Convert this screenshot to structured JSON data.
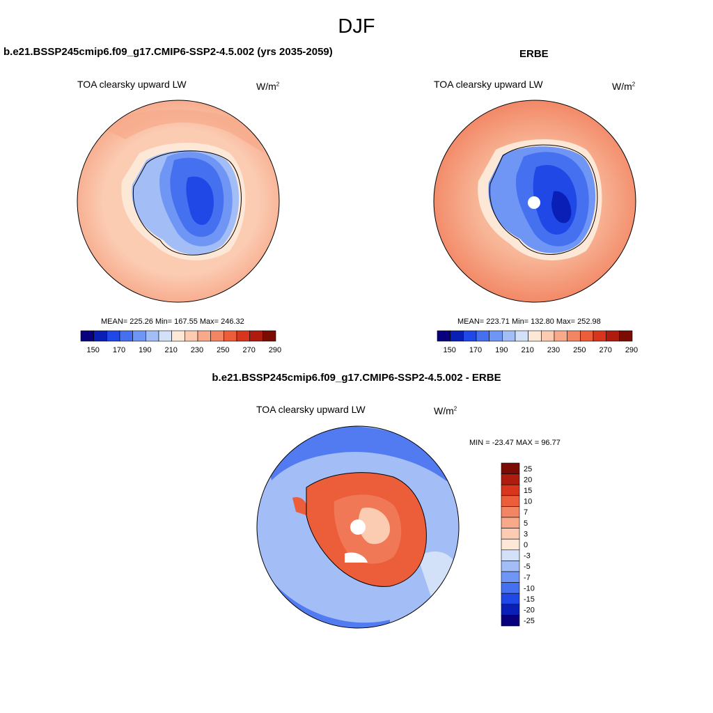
{
  "figure": {
    "season": "DJF",
    "panel_left_title": "b.e21.BSSP245cmip6.f09_g17.CMIP6-SSP2-4.5.002 (yrs 2035-2059)",
    "panel_right_title": "ERBE",
    "panel_diff_title": "b.e21.BSSP245cmip6.f09_g17.CMIP6-SSP2-4.5.002 - ERBE",
    "variable": "TOA clearsky upward LW",
    "units_base": "W/m",
    "units_exp": "2"
  },
  "chart_data": [
    {
      "type": "heatmap",
      "projection": "south-polar-stereographic",
      "title": "b.e21.BSSP245cmip6.f09_g17.CMIP6-SSP2-4.5.002 (yrs 2035-2059)",
      "variable": "TOA clearsky upward LW",
      "units": "W/m2",
      "stats": {
        "mean": 225.26,
        "min": 167.55,
        "max": 246.32
      },
      "stats_label": "MEAN= 225.26  Min= 167.55  Max= 246.32",
      "colorbar_ticks": [
        "150",
        "170",
        "190",
        "210",
        "230",
        "250",
        "270",
        "290"
      ],
      "colorbar_colors": [
        "#08007c",
        "#0a1fb5",
        "#1f48e6",
        "#4570f0",
        "#7096f5",
        "#a3bdf7",
        "#d2e0f8",
        "#fde7d6",
        "#fbcbb2",
        "#f7a98a",
        "#f28563",
        "#ec5d3a",
        "#d8361c",
        "#ae1c0e",
        "#7a0c04"
      ],
      "colorbar_position": "bottom"
    },
    {
      "type": "heatmap",
      "projection": "south-polar-stereographic",
      "title": "ERBE",
      "variable": "TOA clearsky upward LW",
      "units": "W/m2",
      "stats": {
        "mean": 223.71,
        "min": 132.8,
        "max": 252.98
      },
      "stats_label": "MEAN= 223.71  Min= 132.80  Max= 252.98",
      "colorbar_ticks": [
        "150",
        "170",
        "190",
        "210",
        "230",
        "250",
        "270",
        "290"
      ],
      "colorbar_colors": [
        "#08007c",
        "#0a1fb5",
        "#1f48e6",
        "#4570f0",
        "#7096f5",
        "#a3bdf7",
        "#d2e0f8",
        "#fde7d6",
        "#fbcbb2",
        "#f7a98a",
        "#f28563",
        "#ec5d3a",
        "#d8361c",
        "#ae1c0e",
        "#7a0c04"
      ],
      "colorbar_position": "bottom"
    },
    {
      "type": "heatmap",
      "projection": "south-polar-stereographic",
      "title": "b.e21.BSSP245cmip6.f09_g17.CMIP6-SSP2-4.5.002 - ERBE",
      "variable": "TOA clearsky upward LW",
      "units": "W/m2",
      "stats": {
        "min": -23.47,
        "max": 96.77
      },
      "stats_label": "MIN = -23.47 MAX =  96.77",
      "colorbar_ticks": [
        "25",
        "20",
        "15",
        "10",
        "7",
        "5",
        "3",
        "0",
        "-3",
        "-5",
        "-7",
        "-10",
        "-15",
        "-20",
        "-25"
      ],
      "colorbar_colors": [
        "#7a0c04",
        "#ae1c0e",
        "#d8361c",
        "#ec5d3a",
        "#f28563",
        "#f7a98a",
        "#fbcbb2",
        "#fde7d6",
        "#d2e0f8",
        "#a3bdf7",
        "#7096f5",
        "#4570f0",
        "#1f48e6",
        "#0a1fb5",
        "#08007c"
      ],
      "colorbar_position": "right"
    }
  ]
}
